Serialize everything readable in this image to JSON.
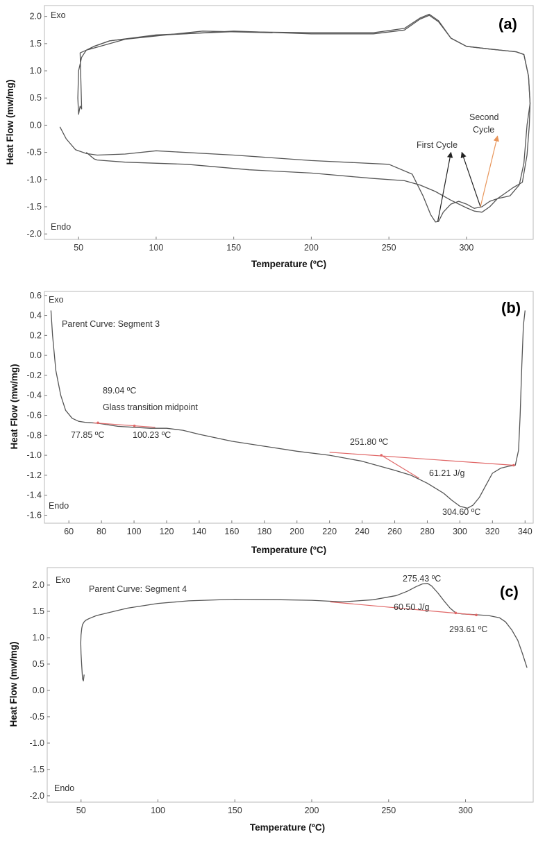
{
  "chart_data": [
    {
      "type": "line",
      "panel_label": "(a)",
      "xlabel": "Temperature (ºC)",
      "ylabel": "Heat Flow (mw/mg)",
      "xlim": [
        28,
        343
      ],
      "ylim": [
        -2.1,
        2.2
      ],
      "xticks": [
        50,
        100,
        150,
        200,
        250,
        300
      ],
      "yticks": [
        -2.0,
        -1.5,
        -1.0,
        -0.5,
        0.0,
        0.5,
        1.0,
        1.5,
        2.0
      ],
      "exo_label": "Exo",
      "endo_label": "Endo",
      "annotations": {
        "first_cycle": "First Cycle",
        "second_cycle_line1": "Second",
        "second_cycle_line2": "Cycle"
      },
      "series": [
        {
          "name": "First Cycle",
          "x": [
            38,
            42,
            48,
            55,
            62,
            80,
            100,
            150,
            200,
            250,
            265,
            272,
            277,
            280,
            282,
            285,
            290,
            295,
            300,
            305,
            310,
            315,
            320,
            328,
            334,
            337,
            339,
            340.5,
            341,
            340,
            337,
            332,
            325,
            315,
            300,
            290,
            282,
            276,
            270,
            260,
            240,
            200,
            150,
            100,
            70,
            60,
            55,
            52,
            50,
            49.5,
            50,
            51,
            52,
            51,
            55,
            80,
            130,
            175
          ],
          "y": [
            -0.03,
            -0.25,
            -0.45,
            -0.52,
            -0.55,
            -0.53,
            -0.47,
            -0.55,
            -0.65,
            -0.72,
            -0.9,
            -1.3,
            -1.65,
            -1.78,
            -1.77,
            -1.6,
            -1.45,
            -1.4,
            -1.45,
            -1.53,
            -1.5,
            -1.4,
            -1.35,
            -1.3,
            -1.1,
            -0.7,
            0.0,
            0.3,
            0.4,
            0.9,
            1.3,
            1.35,
            1.37,
            1.4,
            1.45,
            1.6,
            1.9,
            2.02,
            1.95,
            1.75,
            1.68,
            1.68,
            1.73,
            1.65,
            1.55,
            1.45,
            1.38,
            1.25,
            1.0,
            0.5,
            0.2,
            0.35,
            0.3,
            1.33,
            1.38,
            1.58,
            1.73,
            1.7
          ]
        },
        {
          "name": "Second Cycle",
          "x": [
            55,
            60,
            62,
            80,
            120,
            160,
            200,
            240,
            260,
            270,
            280,
            290,
            300,
            305,
            310,
            315,
            320,
            325,
            330,
            333,
            336,
            339,
            340.5,
            341,
            340,
            337,
            332,
            325,
            315,
            300,
            290,
            282,
            276,
            270,
            260,
            240,
            200,
            150,
            100,
            70,
            60,
            55
          ],
          "y": [
            -0.5,
            -0.62,
            -0.64,
            -0.68,
            -0.72,
            -0.82,
            -0.88,
            -0.98,
            -1.02,
            -1.1,
            -1.22,
            -1.38,
            -1.52,
            -1.58,
            -1.6,
            -1.5,
            -1.35,
            -1.25,
            -1.15,
            -1.1,
            -1.05,
            -0.55,
            0.0,
            0.4,
            0.9,
            1.3,
            1.35,
            1.37,
            1.4,
            1.45,
            1.6,
            1.92,
            2.04,
            1.97,
            1.78,
            1.7,
            1.7,
            1.72,
            1.66,
            1.55,
            1.45,
            1.38
          ]
        }
      ]
    },
    {
      "type": "line",
      "panel_label": "(b)",
      "xlabel": "Temperature (ºC)",
      "ylabel": "Heat Flow (mw/mg)",
      "xlim": [
        45,
        345
      ],
      "ylim": [
        -1.68,
        0.64
      ],
      "xticks": [
        60,
        80,
        100,
        120,
        140,
        160,
        180,
        200,
        220,
        240,
        260,
        280,
        300,
        320,
        340
      ],
      "yticks": [
        -1.6,
        -1.4,
        -1.2,
        -1.0,
        -0.8,
        -0.6,
        -0.4,
        -0.2,
        0.0,
        0.2,
        0.4,
        0.6
      ],
      "exo_label": "Exo",
      "endo_label": "Endo",
      "parent_curve": "Parent Curve: Segment 3",
      "annotations": {
        "tg_midpoint_value": "89.04 ºC",
        "tg_midpoint_label": "Glass transition midpoint",
        "tg_onset": "77.85 ºC",
        "tg_end": "100.23 ºC",
        "melt_onset": "251.80 ºC",
        "melt_enthalpy": "61.21 J/g",
        "melt_peak": "304.60 ºC"
      },
      "series": [
        {
          "name": "Segment 3",
          "x": [
            49,
            50,
            52,
            55,
            58,
            62,
            66,
            70,
            78,
            90,
            100,
            110,
            120,
            130,
            140,
            160,
            180,
            200,
            220,
            240,
            260,
            270,
            280,
            290,
            295,
            300,
            304.6,
            308,
            312,
            316,
            320,
            325,
            330,
            334,
            336,
            337,
            338,
            339,
            340
          ],
          "y": [
            0.45,
            0.2,
            -0.15,
            -0.4,
            -0.55,
            -0.63,
            -0.66,
            -0.67,
            -0.68,
            -0.71,
            -0.72,
            -0.73,
            -0.73,
            -0.75,
            -0.79,
            -0.86,
            -0.91,
            -0.96,
            -1.0,
            -1.06,
            -1.15,
            -1.2,
            -1.28,
            -1.38,
            -1.45,
            -1.51,
            -1.53,
            -1.5,
            -1.42,
            -1.3,
            -1.18,
            -1.13,
            -1.11,
            -1.1,
            -0.95,
            -0.6,
            -0.1,
            0.3,
            0.45
          ]
        }
      ]
    },
    {
      "type": "line",
      "panel_label": "(c)",
      "xlabel": "Temperature (ºC)",
      "ylabel": "Heat Flow (mw/mg)",
      "xlim": [
        28,
        344
      ],
      "ylim": [
        -2.12,
        2.33
      ],
      "xticks": [
        50,
        100,
        150,
        200,
        250,
        300
      ],
      "yticks": [
        -2.0,
        -1.5,
        -1.0,
        -0.5,
        0.0,
        0.5,
        1.0,
        1.5,
        2.0
      ],
      "exo_label": "Exo",
      "endo_label": "Endo",
      "parent_curve": "Parent Curve: Segment 4",
      "annotations": {
        "cryst_peak": "275.43 ºC",
        "cryst_enthalpy": "60.50 J/g",
        "cryst_end": "293.61 ºC"
      },
      "series": [
        {
          "name": "Segment 4",
          "x": [
            52,
            51.5,
            51,
            50.5,
            50,
            49.8,
            50,
            50.5,
            51,
            52,
            53,
            55,
            60,
            80,
            100,
            120,
            150,
            180,
            200,
            220,
            240,
            255,
            262,
            268,
            272,
            275.4,
            278,
            282,
            286,
            290,
            293.6,
            298,
            305,
            315,
            322,
            326,
            330,
            334,
            337,
            339,
            340
          ],
          "y": [
            0.3,
            0.18,
            0.22,
            0.45,
            0.7,
            0.9,
            1.05,
            1.18,
            1.25,
            1.3,
            1.33,
            1.36,
            1.42,
            1.56,
            1.65,
            1.7,
            1.73,
            1.72,
            1.71,
            1.68,
            1.72,
            1.8,
            1.88,
            1.97,
            2.02,
            2.03,
            1.98,
            1.85,
            1.7,
            1.56,
            1.47,
            1.45,
            1.44,
            1.42,
            1.38,
            1.3,
            1.15,
            0.95,
            0.7,
            0.52,
            0.43
          ]
        }
      ]
    }
  ]
}
